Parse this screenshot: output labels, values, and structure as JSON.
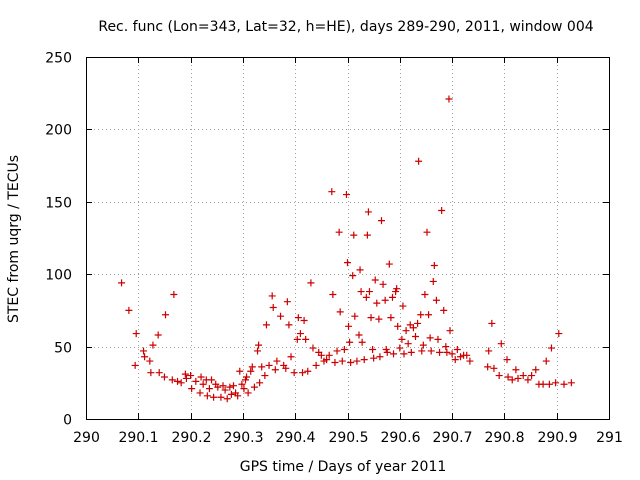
{
  "chart_data": {
    "type": "scatter",
    "title": "Rec. func (Lon=343, Lat=32, h=HE), days 289-290, 2011, window 004",
    "xlabel": "GPS time / Days of year 2011",
    "ylabel": "STEC from uqrg / TECUs",
    "xlim": [
      290,
      291
    ],
    "ylim": [
      0,
      250
    ],
    "xticks": [
      290,
      290.1,
      290.2,
      290.3,
      290.4,
      290.5,
      290.6,
      290.7,
      290.8,
      290.9,
      291
    ],
    "xtick_labels": [
      "290",
      "290.1",
      "290.2",
      "290.3",
      "290.4",
      "290.5",
      "290.6",
      "290.7",
      "290.8",
      "290.9",
      "291"
    ],
    "yticks": [
      0,
      50,
      100,
      150,
      200,
      250
    ],
    "ytick_labels": [
      "0",
      "50",
      "100",
      "150",
      "200",
      "250"
    ],
    "grid": true,
    "marker": "+",
    "color": "#cc0000",
    "points": [
      [
        290.068,
        94
      ],
      [
        290.082,
        75
      ],
      [
        290.094,
        37
      ],
      [
        290.096,
        59
      ],
      [
        290.11,
        47
      ],
      [
        290.112,
        43
      ],
      [
        290.122,
        40
      ],
      [
        290.124,
        32
      ],
      [
        290.128,
        51
      ],
      [
        290.138,
        58
      ],
      [
        290.14,
        32
      ],
      [
        290.15,
        29
      ],
      [
        290.152,
        72
      ],
      [
        290.165,
        27
      ],
      [
        290.168,
        86
      ],
      [
        290.175,
        26
      ],
      [
        290.182,
        25
      ],
      [
        290.19,
        31
      ],
      [
        290.192,
        28
      ],
      [
        290.2,
        30
      ],
      [
        290.202,
        21
      ],
      [
        290.21,
        26
      ],
      [
        290.218,
        18
      ],
      [
        290.22,
        29
      ],
      [
        290.224,
        24
      ],
      [
        290.23,
        27
      ],
      [
        290.232,
        16
      ],
      [
        290.236,
        21
      ],
      [
        290.24,
        27
      ],
      [
        290.244,
        15
      ],
      [
        290.248,
        24
      ],
      [
        290.252,
        22
      ],
      [
        290.258,
        15
      ],
      [
        290.262,
        23
      ],
      [
        290.266,
        20
      ],
      [
        290.27,
        14
      ],
      [
        290.275,
        22
      ],
      [
        290.278,
        17
      ],
      [
        290.282,
        23
      ],
      [
        290.286,
        18
      ],
      [
        290.29,
        16
      ],
      [
        290.294,
        33
      ],
      [
        290.298,
        24
      ],
      [
        290.302,
        21
      ],
      [
        290.305,
        27
      ],
      [
        290.307,
        29
      ],
      [
        290.31,
        18
      ],
      [
        290.315,
        33
      ],
      [
        290.318,
        36
      ],
      [
        290.322,
        22
      ],
      [
        290.328,
        47
      ],
      [
        290.33,
        51
      ],
      [
        290.332,
        25
      ],
      [
        290.336,
        36
      ],
      [
        290.342,
        30
      ],
      [
        290.345,
        65
      ],
      [
        290.35,
        37
      ],
      [
        290.356,
        85
      ],
      [
        290.358,
        77
      ],
      [
        290.362,
        34
      ],
      [
        290.365,
        40
      ],
      [
        290.372,
        71
      ],
      [
        290.378,
        37
      ],
      [
        290.382,
        35
      ],
      [
        290.385,
        81
      ],
      [
        290.388,
        65
      ],
      [
        290.392,
        43
      ],
      [
        290.398,
        32
      ],
      [
        290.404,
        55
      ],
      [
        290.406,
        70
      ],
      [
        290.41,
        59
      ],
      [
        290.414,
        32
      ],
      [
        290.417,
        68
      ],
      [
        290.42,
        55
      ],
      [
        290.424,
        33
      ],
      [
        290.43,
        94
      ],
      [
        290.434,
        49
      ],
      [
        290.44,
        37
      ],
      [
        290.445,
        46
      ],
      [
        290.45,
        44
      ],
      [
        290.455,
        40
      ],
      [
        290.46,
        41
      ],
      [
        290.465,
        44
      ],
      [
        290.47,
        157
      ],
      [
        290.472,
        86
      ],
      [
        290.476,
        39
      ],
      [
        290.48,
        47
      ],
      [
        290.484,
        129
      ],
      [
        290.486,
        74
      ],
      [
        290.49,
        40
      ],
      [
        290.494,
        48
      ],
      [
        290.498,
        155
      ],
      [
        290.5,
        108
      ],
      [
        290.502,
        64
      ],
      [
        290.504,
        53
      ],
      [
        290.506,
        39
      ],
      [
        290.51,
        99
      ],
      [
        290.512,
        127
      ],
      [
        290.514,
        71
      ],
      [
        290.518,
        40
      ],
      [
        290.522,
        58
      ],
      [
        290.524,
        103
      ],
      [
        290.526,
        88
      ],
      [
        290.528,
        53
      ],
      [
        290.532,
        41
      ],
      [
        290.536,
        84
      ],
      [
        290.538,
        127
      ],
      [
        290.54,
        143
      ],
      [
        290.542,
        88
      ],
      [
        290.545,
        70
      ],
      [
        290.548,
        48
      ],
      [
        290.55,
        42
      ],
      [
        290.553,
        96
      ],
      [
        290.556,
        80
      ],
      [
        290.56,
        69
      ],
      [
        290.562,
        43
      ],
      [
        290.565,
        137
      ],
      [
        290.568,
        93
      ],
      [
        290.572,
        82
      ],
      [
        290.574,
        48
      ],
      [
        290.576,
        46
      ],
      [
        290.58,
        107
      ],
      [
        290.583,
        70
      ],
      [
        290.586,
        84
      ],
      [
        290.588,
        45
      ],
      [
        290.592,
        88
      ],
      [
        290.594,
        90
      ],
      [
        290.596,
        64
      ],
      [
        290.6,
        49
      ],
      [
        290.604,
        55
      ],
      [
        290.606,
        78
      ],
      [
        290.608,
        45
      ],
      [
        290.612,
        61
      ],
      [
        290.616,
        52
      ],
      [
        290.62,
        65
      ],
      [
        290.622,
        46
      ],
      [
        290.626,
        63
      ],
      [
        290.63,
        57
      ],
      [
        290.634,
        66
      ],
      [
        290.636,
        178
      ],
      [
        290.64,
        72
      ],
      [
        290.642,
        47
      ],
      [
        290.645,
        51
      ],
      [
        290.648,
        86
      ],
      [
        290.652,
        129
      ],
      [
        290.655,
        72
      ],
      [
        290.658,
        56
      ],
      [
        290.66,
        47
      ],
      [
        290.664,
        95
      ],
      [
        290.666,
        106
      ],
      [
        290.67,
        82
      ],
      [
        290.673,
        55
      ],
      [
        290.676,
        46
      ],
      [
        290.68,
        144
      ],
      [
        290.684,
        75
      ],
      [
        290.688,
        50
      ],
      [
        290.69,
        46
      ],
      [
        290.694,
        221
      ],
      [
        290.696,
        61
      ],
      [
        290.7,
        45
      ],
      [
        290.706,
        41
      ],
      [
        290.71,
        48
      ],
      [
        290.716,
        43
      ],
      [
        290.722,
        44
      ],
      [
        290.728,
        44
      ],
      [
        290.734,
        40
      ],
      [
        290.768,
        36
      ],
      [
        290.77,
        47
      ],
      [
        290.776,
        66
      ],
      [
        290.78,
        35
      ],
      [
        290.79,
        30
      ],
      [
        290.794,
        52
      ],
      [
        290.805,
        41
      ],
      [
        290.807,
        29
      ],
      [
        290.815,
        27
      ],
      [
        290.822,
        34
      ],
      [
        290.826,
        28
      ],
      [
        290.836,
        30
      ],
      [
        290.845,
        27
      ],
      [
        290.852,
        30
      ],
      [
        290.86,
        34
      ],
      [
        290.866,
        24
      ],
      [
        290.874,
        24
      ],
      [
        290.88,
        40
      ],
      [
        290.886,
        24
      ],
      [
        290.89,
        49
      ],
      [
        290.898,
        25
      ],
      [
        290.904,
        59
      ],
      [
        290.914,
        24
      ],
      [
        290.928,
        25
      ]
    ]
  }
}
